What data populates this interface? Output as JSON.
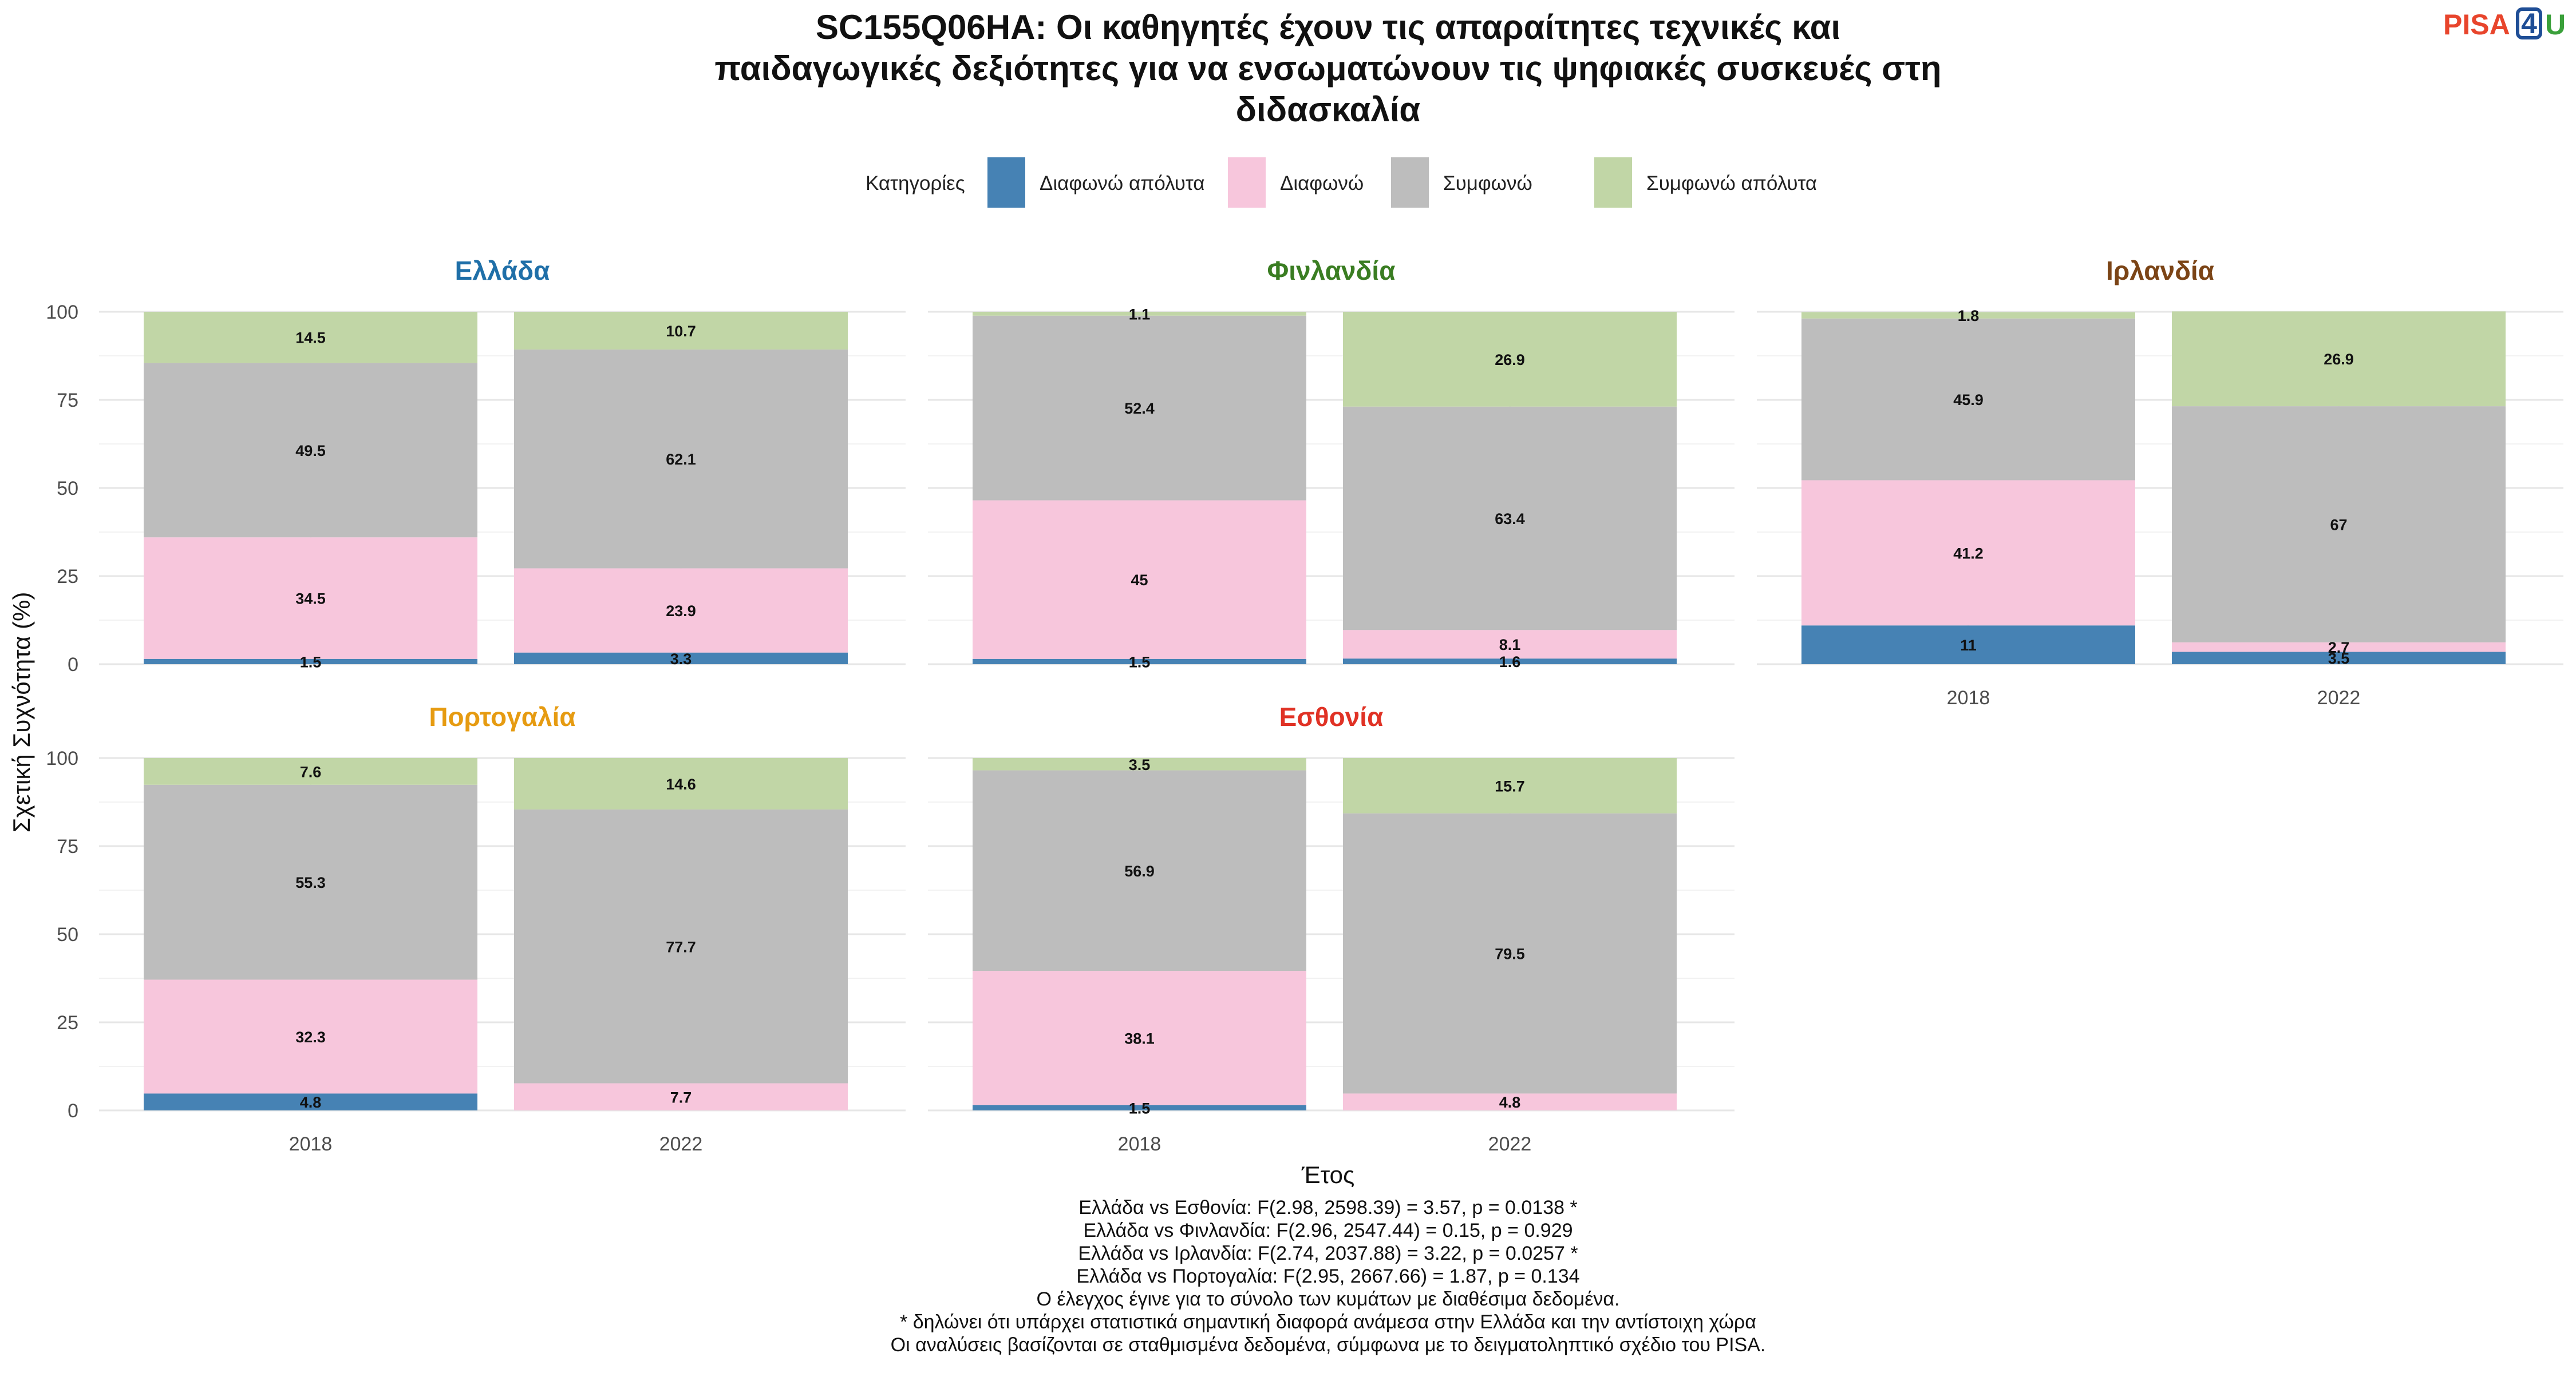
{
  "logo": {
    "pisa": "PISA",
    "digit": "4",
    "u": "U",
    "pisa_color": "#e8452c",
    "digit_color": "#1f4e96",
    "u_color": "#3aa03a"
  },
  "chart_data": {
    "type": "bar",
    "stacked": true,
    "percent": true,
    "title": [
      "SC155Q06HA: Οι καθηγητές έχουν τις απαραίτητες τεχνικές και",
      "παιδαγωγικές δεξιότητες για να ενσωματώνουν τις ψηφιακές συσκευές στη",
      "διδασκαλία"
    ],
    "xlabel": "Έτος",
    "ylabel": "Σχετική Συχνότητα (%)",
    "ylim": [
      0,
      100
    ],
    "yticks": [
      0,
      25,
      50,
      75,
      100
    ],
    "categories": [
      "2018",
      "2022"
    ],
    "grid": true,
    "legend": {
      "title": "Κατηγορίες",
      "position": "top",
      "items": [
        {
          "name": "Διαφωνώ απόλυτα",
          "color": "#4682b4"
        },
        {
          "name": "Διαφωνώ",
          "color": "#f7c6dc"
        },
        {
          "name": "Συμφωνώ",
          "color": "#bdbdbd"
        },
        {
          "name": "Συμφωνώ απόλυτα",
          "color": "#c1d6a6"
        }
      ]
    },
    "panels": [
      {
        "country": "Ελλάδα",
        "color": "#1f6fa8",
        "years": [
          {
            "year": "2018",
            "values": [
              1.5,
              34.5,
              49.5,
              14.5
            ]
          },
          {
            "year": "2022",
            "values": [
              3.3,
              23.9,
              62.1,
              10.7
            ]
          }
        ]
      },
      {
        "country": "Φινλανδία",
        "color": "#3a7d22",
        "years": [
          {
            "year": "2018",
            "values": [
              1.5,
              45,
              52.4,
              1.1
            ]
          },
          {
            "year": "2022",
            "values": [
              1.6,
              8.1,
              63.4,
              26.9
            ]
          }
        ]
      },
      {
        "country": "Ιρλανδία",
        "color": "#7b4416",
        "years": [
          {
            "year": "2018",
            "values": [
              11,
              41.2,
              45.9,
              1.8
            ]
          },
          {
            "year": "2022",
            "values": [
              3.5,
              2.7,
              67,
              26.9
            ]
          }
        ]
      },
      {
        "country": "Πορτογαλία",
        "color": "#e69b11",
        "years": [
          {
            "year": "2018",
            "values": [
              4.8,
              32.3,
              55.3,
              7.6
            ]
          },
          {
            "year": "2022",
            "values": [
              0,
              7.7,
              77.7,
              14.6
            ]
          }
        ]
      },
      {
        "country": "Εσθονία",
        "color": "#e03225",
        "years": [
          {
            "year": "2018",
            "values": [
              1.5,
              38.1,
              56.9,
              3.5
            ]
          },
          {
            "year": "2022",
            "values": [
              0,
              4.8,
              79.5,
              15.7
            ]
          }
        ]
      }
    ],
    "caption": [
      "Ελλάδα vs Εσθονία: F(2.98, 2598.39) = 3.57, p = 0.0138 *",
      "Ελλάδα vs Φινλανδία: F(2.96, 2547.44) = 0.15, p = 0.929",
      "Ελλάδα vs Ιρλανδία: F(2.74, 2037.88) = 3.22, p = 0.0257 *",
      "Ελλάδα vs Πορτογαλία: F(2.95, 2667.66) = 1.87, p = 0.134",
      "Ο έλεγχος έγινε για το σύνολο των κυμάτων με διαθέσιμα δεδομένα.",
      "* δηλώνει ότι υπάρχει στατιστικά σημαντική διαφορά ανάμεσα στην Ελλάδα και την αντίστοιχη χώρα",
      "Οι αναλύσεις βασίζονται σε σταθμισμένα δεδομένα, σύμφωνα με το δειγματοληπτικό σχέδιο του PISA."
    ]
  }
}
